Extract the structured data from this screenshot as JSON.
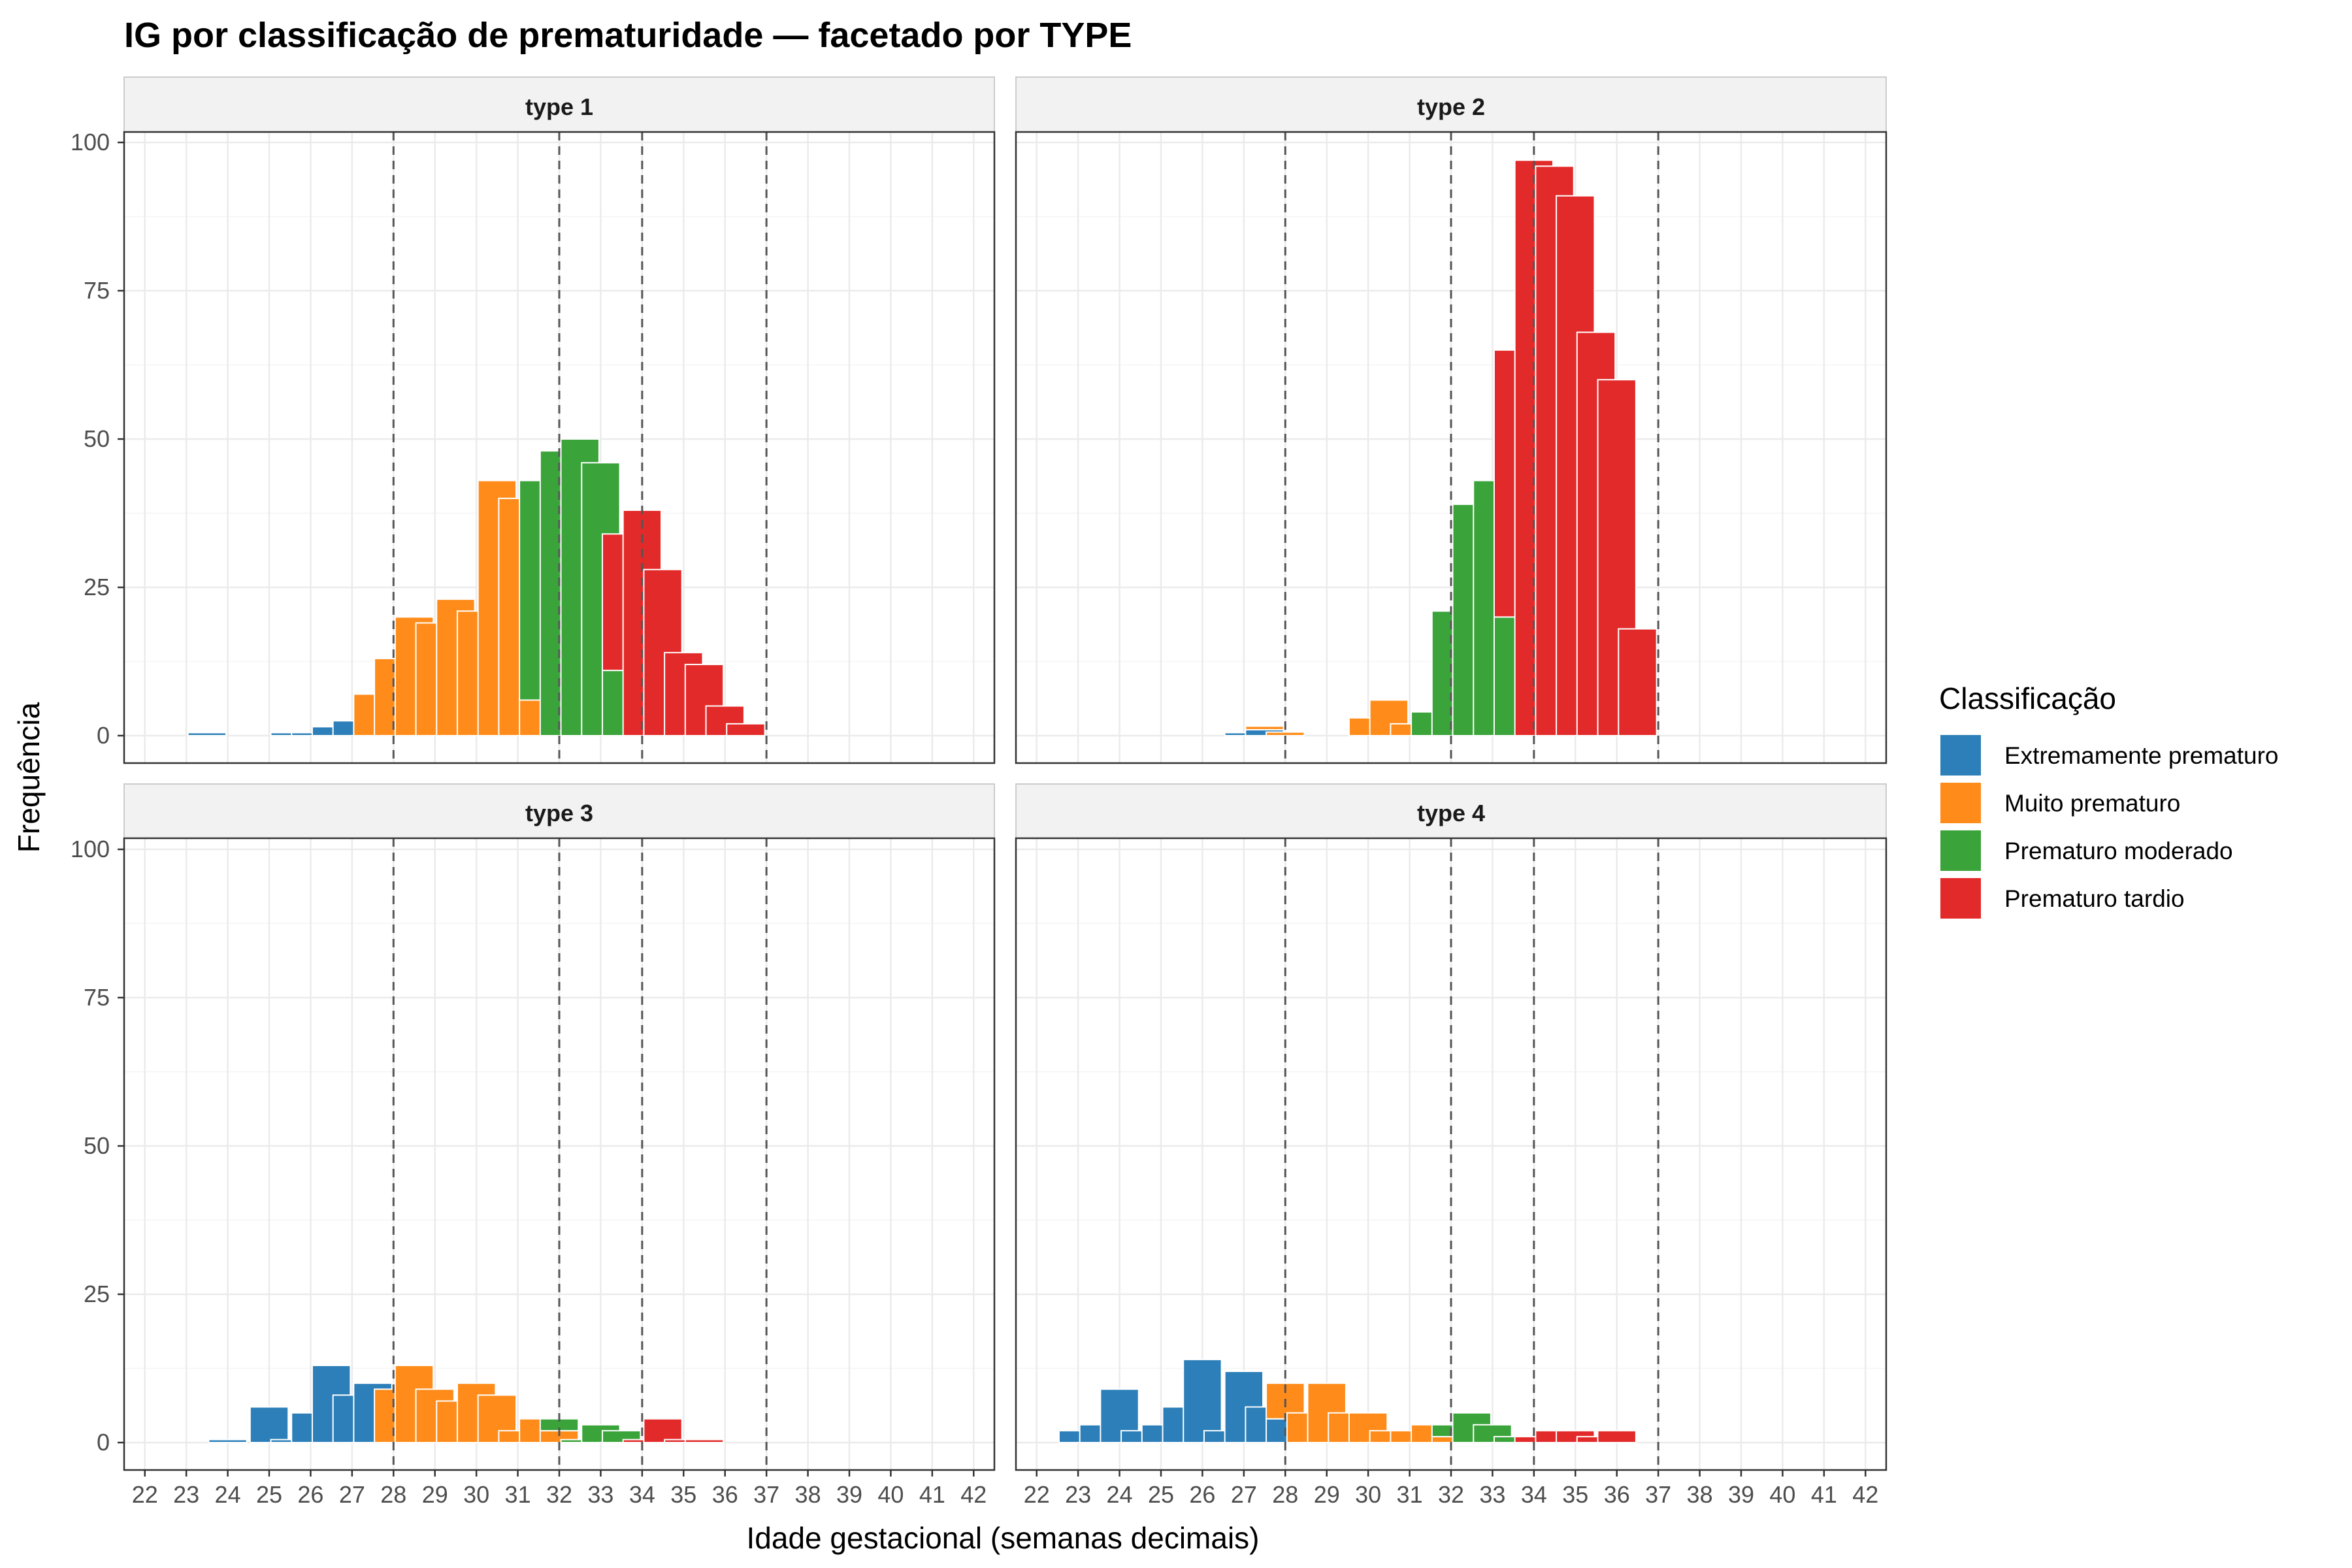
{
  "chart_data": {
    "type": "bar",
    "title": "IG por classificação de prematuridade — facetado por TYPE",
    "xlabel": "Idade gestacional (semanas decimais)",
    "ylabel": "Frequência",
    "xlim": [
      21.5,
      42.5
    ],
    "ylim": [
      0,
      100
    ],
    "x_ticks": [
      22,
      23,
      24,
      25,
      26,
      27,
      28,
      29,
      30,
      31,
      32,
      33,
      34,
      35,
      36,
      37,
      38,
      39,
      40,
      41,
      42
    ],
    "y_ticks": [
      0,
      25,
      50,
      75,
      100
    ],
    "bin_width": 0.92,
    "grid": true,
    "reference_lines": [
      28,
      32,
      34,
      37
    ],
    "legend": {
      "title": "Classificação",
      "position": "right",
      "entries": [
        {
          "label": "Extremamente prematuro",
          "color": "#2c7fb8"
        },
        {
          "label": "Muito prematuro",
          "color": "#ff8c1a"
        },
        {
          "label": "Prematuro moderado",
          "color": "#3aa33a"
        },
        {
          "label": "Prematuro tardio",
          "color": "#e32a2a"
        }
      ]
    },
    "panels": [
      {
        "label": "type 1",
        "bins": [
          {
            "x": 23.5,
            "segments": [
              0.5
            ]
          },
          {
            "x": 25.5,
            "segments": [
              0.5
            ]
          },
          {
            "x": 26.0,
            "segments": [
              0.5
            ]
          },
          {
            "x": 26.5,
            "segments": [
              1.5
            ]
          },
          {
            "x": 27.0,
            "segments": [
              2.5
            ]
          },
          {
            "x": 27.5,
            "segments": [
              0,
              7
            ]
          },
          {
            "x": 28.0,
            "segments": [
              0,
              13
            ]
          },
          {
            "x": 28.5,
            "segments": [
              0,
              20
            ]
          },
          {
            "x": 29.0,
            "segments": [
              0,
              19
            ]
          },
          {
            "x": 29.5,
            "segments": [
              0,
              23
            ]
          },
          {
            "x": 30.0,
            "segments": [
              0,
              21
            ]
          },
          {
            "x": 30.5,
            "segments": [
              0,
              43
            ]
          },
          {
            "x": 31.0,
            "segments": [
              0,
              40
            ]
          },
          {
            "x": 31.5,
            "segments": [
              0,
              6,
              37
            ]
          },
          {
            "x": 32.0,
            "segments": [
              0,
              0,
              48
            ]
          },
          {
            "x": 32.5,
            "segments": [
              0,
              0,
              50
            ]
          },
          {
            "x": 33.0,
            "segments": [
              0,
              0,
              46
            ]
          },
          {
            "x": 33.5,
            "segments": [
              0,
              0,
              11,
              23
            ]
          },
          {
            "x": 34.0,
            "segments": [
              0,
              0,
              0,
              38
            ]
          },
          {
            "x": 34.5,
            "segments": [
              0,
              0,
              0,
              28
            ]
          },
          {
            "x": 35.0,
            "segments": [
              0,
              0,
              0,
              14
            ]
          },
          {
            "x": 35.5,
            "segments": [
              0,
              0,
              0,
              12
            ]
          },
          {
            "x": 36.0,
            "segments": [
              0,
              0,
              0,
              5
            ]
          },
          {
            "x": 36.5,
            "segments": [
              0,
              0,
              0,
              2
            ]
          }
        ]
      },
      {
        "label": "type 2",
        "bins": [
          {
            "x": 27.0,
            "segments": [
              0.5
            ]
          },
          {
            "x": 27.5,
            "segments": [
              1,
              0.6
            ]
          },
          {
            "x": 28.0,
            "segments": [
              0,
              0.6
            ]
          },
          {
            "x": 30.0,
            "segments": [
              0,
              3
            ]
          },
          {
            "x": 30.5,
            "segments": [
              0,
              6
            ]
          },
          {
            "x": 31.0,
            "segments": [
              0,
              2
            ]
          },
          {
            "x": 31.5,
            "segments": [
              0,
              0,
              4
            ]
          },
          {
            "x": 32.0,
            "segments": [
              0,
              0,
              21
            ]
          },
          {
            "x": 32.5,
            "segments": [
              0,
              0,
              39
            ]
          },
          {
            "x": 33.0,
            "segments": [
              0,
              0,
              43
            ]
          },
          {
            "x": 33.5,
            "segments": [
              0,
              0,
              20,
              45
            ]
          },
          {
            "x": 34.0,
            "segments": [
              0,
              0,
              0,
              97
            ]
          },
          {
            "x": 34.5,
            "segments": [
              0,
              0,
              0,
              96
            ]
          },
          {
            "x": 35.0,
            "segments": [
              0,
              0,
              0,
              91
            ]
          },
          {
            "x": 35.5,
            "segments": [
              0,
              0,
              0,
              68
            ]
          },
          {
            "x": 36.0,
            "segments": [
              0,
              0,
              0,
              60
            ]
          },
          {
            "x": 36.5,
            "segments": [
              0,
              0,
              0,
              18
            ]
          }
        ]
      },
      {
        "label": "type 3",
        "bins": [
          {
            "x": 24.0,
            "segments": [
              0.5
            ]
          },
          {
            "x": 25.0,
            "segments": [
              6
            ]
          },
          {
            "x": 25.5,
            "segments": [
              0.5
            ]
          },
          {
            "x": 26.0,
            "segments": [
              5
            ]
          },
          {
            "x": 26.5,
            "segments": [
              13
            ]
          },
          {
            "x": 27.0,
            "segments": [
              8
            ]
          },
          {
            "x": 27.5,
            "segments": [
              10
            ]
          },
          {
            "x": 28.0,
            "segments": [
              0,
              9
            ]
          },
          {
            "x": 28.5,
            "segments": [
              0,
              13
            ]
          },
          {
            "x": 29.0,
            "segments": [
              0,
              9
            ]
          },
          {
            "x": 29.5,
            "segments": [
              0,
              7
            ]
          },
          {
            "x": 30.0,
            "segments": [
              0,
              10
            ]
          },
          {
            "x": 30.5,
            "segments": [
              0,
              8
            ]
          },
          {
            "x": 31.0,
            "segments": [
              0,
              2
            ]
          },
          {
            "x": 31.5,
            "segments": [
              0,
              4
            ]
          },
          {
            "x": 32.0,
            "segments": [
              0,
              2,
              2
            ]
          },
          {
            "x": 32.5,
            "segments": [
              0,
              0,
              0.5
            ]
          },
          {
            "x": 33.0,
            "segments": [
              0,
              0,
              3
            ]
          },
          {
            "x": 33.5,
            "segments": [
              0,
              0,
              2
            ]
          },
          {
            "x": 34.0,
            "segments": [
              0,
              0,
              0,
              0.5
            ]
          },
          {
            "x": 34.5,
            "segments": [
              0,
              0,
              0,
              4
            ]
          },
          {
            "x": 35.0,
            "segments": [
              0,
              0,
              0,
              0.5
            ]
          },
          {
            "x": 35.5,
            "segments": [
              0,
              0,
              0,
              0.5
            ]
          }
        ]
      },
      {
        "label": "type 4",
        "bins": [
          {
            "x": 23.0,
            "segments": [
              2
            ]
          },
          {
            "x": 23.5,
            "segments": [
              3
            ]
          },
          {
            "x": 24.0,
            "segments": [
              9
            ]
          },
          {
            "x": 24.5,
            "segments": [
              2
            ]
          },
          {
            "x": 25.0,
            "segments": [
              3
            ]
          },
          {
            "x": 25.5,
            "segments": [
              6
            ]
          },
          {
            "x": 26.0,
            "segments": [
              14
            ]
          },
          {
            "x": 26.5,
            "segments": [
              2
            ]
          },
          {
            "x": 27.0,
            "segments": [
              12
            ]
          },
          {
            "x": 27.5,
            "segments": [
              6
            ]
          },
          {
            "x": 28.0,
            "segments": [
              4,
              6
            ]
          },
          {
            "x": 28.5,
            "segments": [
              0,
              5
            ]
          },
          {
            "x": 29.0,
            "segments": [
              0,
              10
            ]
          },
          {
            "x": 29.5,
            "segments": [
              0,
              5
            ]
          },
          {
            "x": 30.0,
            "segments": [
              0,
              5
            ]
          },
          {
            "x": 30.5,
            "segments": [
              0,
              2
            ]
          },
          {
            "x": 31.0,
            "segments": [
              0,
              2
            ]
          },
          {
            "x": 31.5,
            "segments": [
              0,
              3
            ]
          },
          {
            "x": 32.0,
            "segments": [
              0,
              1,
              2
            ]
          },
          {
            "x": 32.5,
            "segments": [
              0,
              0,
              5
            ]
          },
          {
            "x": 33.0,
            "segments": [
              0,
              0,
              3
            ]
          },
          {
            "x": 33.5,
            "segments": [
              0,
              0,
              1
            ]
          },
          {
            "x": 34.0,
            "segments": [
              0,
              0,
              0,
              1
            ]
          },
          {
            "x": 34.5,
            "segments": [
              0,
              0,
              0,
              2
            ]
          },
          {
            "x": 35.0,
            "segments": [
              0,
              0,
              0,
              2
            ]
          },
          {
            "x": 35.5,
            "segments": [
              0,
              0,
              0,
              1
            ]
          },
          {
            "x": 36.0,
            "segments": [
              0,
              0,
              0,
              2
            ]
          }
        ]
      }
    ]
  }
}
